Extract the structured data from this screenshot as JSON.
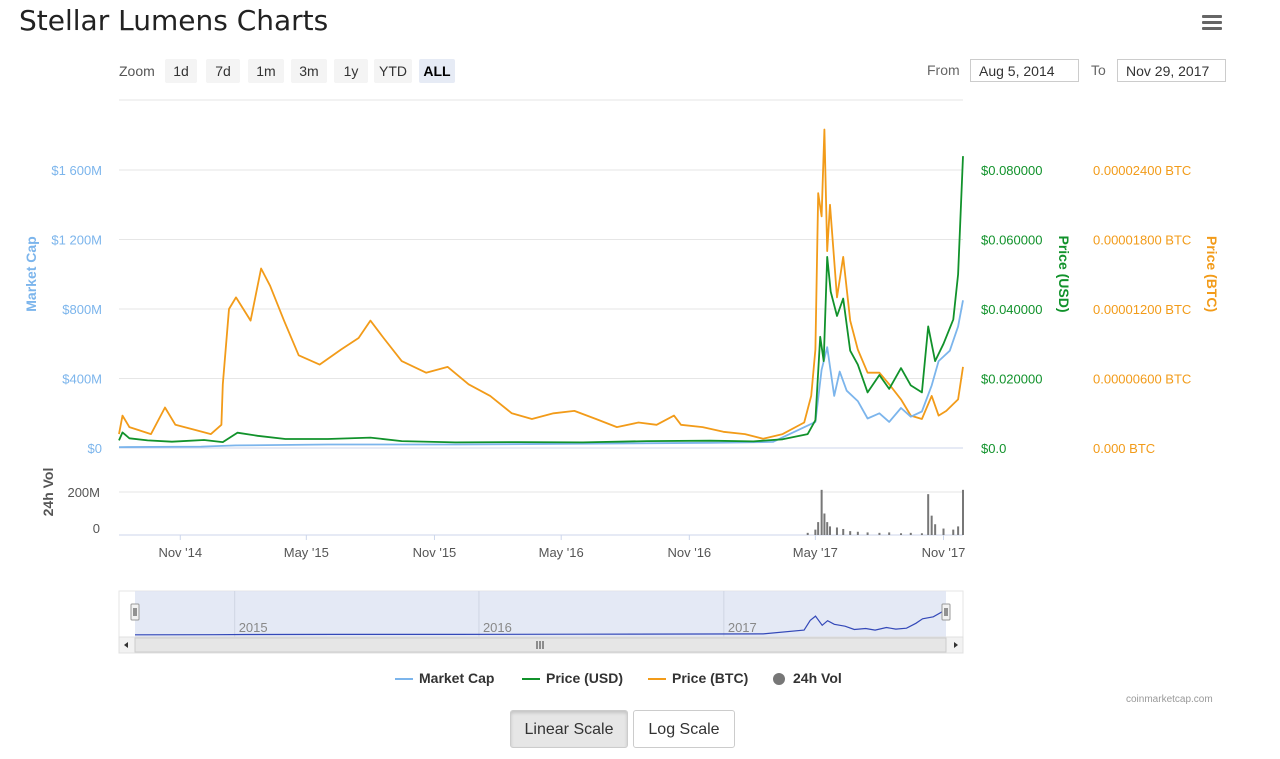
{
  "page": {
    "title": "Stellar Lumens Charts",
    "credits": "coinmarketcap.com"
  },
  "zoom": {
    "label": "Zoom",
    "buttons": [
      "1d",
      "7d",
      "1m",
      "3m",
      "1y",
      "YTD",
      "ALL"
    ],
    "active": "ALL"
  },
  "range": {
    "from_label": "From",
    "from_value": "Aug 5, 2014",
    "to_label": "To",
    "to_value": "Nov 29, 2017"
  },
  "scale_buttons": {
    "linear": "Linear Scale",
    "log": "Log Scale",
    "active": "linear"
  },
  "colors": {
    "market_cap": "#7cb5ec",
    "price_usd": "#11922b",
    "price_btc": "#f29b19",
    "volume": "#777777",
    "navigator_fill": "#dde3f2",
    "navigator_line": "#3348b8"
  },
  "chart_data": {
    "type": "line",
    "x_range": [
      "2014-08-05",
      "2017-11-29"
    ],
    "x_ticks": [
      "Nov '14",
      "May '15",
      "Nov '15",
      "May '16",
      "Nov '16",
      "May '17",
      "Nov '17"
    ],
    "axes": {
      "market_cap": {
        "label": "Market Cap",
        "ticks": [
          "$0",
          "$400M",
          "$800M",
          "$1 200M",
          "$1 600M"
        ],
        "range": [
          0,
          1600
        ]
      },
      "price_usd": {
        "label": "Price (USD)",
        "ticks": [
          "$0.0",
          "$0.020000",
          "$0.040000",
          "$0.060000",
          "$0.080000"
        ],
        "range": [
          0,
          0.08
        ]
      },
      "price_btc": {
        "label": "Price (BTC)",
        "ticks": [
          "0.000 BTC",
          "0.00000600 BTC",
          "0.00001200 BTC",
          "0.00001800 BTC",
          "0.00002400 BTC"
        ],
        "range": [
          0,
          2.4e-05
        ]
      },
      "volume": {
        "label": "24h Vol",
        "ticks": [
          "0",
          "200M"
        ],
        "range": [
          0,
          200
        ]
      }
    },
    "navigator_years": [
      "2015",
      "2016",
      "2017"
    ],
    "series": [
      {
        "name": "Market Cap",
        "axis": "market_cap",
        "points": [
          [
            "2014-08-05",
            5
          ],
          [
            "2014-12-01",
            8
          ],
          [
            "2015-01-20",
            15
          ],
          [
            "2015-06-01",
            20
          ],
          [
            "2015-12-01",
            20
          ],
          [
            "2016-06-01",
            25
          ],
          [
            "2016-12-01",
            30
          ],
          [
            "2017-03-01",
            35
          ],
          [
            "2017-05-01",
            150
          ],
          [
            "2017-05-10",
            450
          ],
          [
            "2017-05-18",
            580
          ],
          [
            "2017-05-28",
            300
          ],
          [
            "2017-06-05",
            440
          ],
          [
            "2017-06-15",
            330
          ],
          [
            "2017-07-01",
            270
          ],
          [
            "2017-07-15",
            170
          ],
          [
            "2017-08-01",
            200
          ],
          [
            "2017-08-15",
            150
          ],
          [
            "2017-09-01",
            230
          ],
          [
            "2017-09-15",
            180
          ],
          [
            "2017-10-01",
            210
          ],
          [
            "2017-10-15",
            360
          ],
          [
            "2017-10-25",
            500
          ],
          [
            "2017-11-10",
            560
          ],
          [
            "2017-11-22",
            700
          ],
          [
            "2017-11-29",
            850
          ]
        ]
      },
      {
        "name": "Price (USD)",
        "axis": "price_usd",
        "points": [
          [
            "2014-08-05",
            0.0022
          ],
          [
            "2014-08-10",
            0.0045
          ],
          [
            "2014-08-20",
            0.0028
          ],
          [
            "2014-09-15",
            0.0022
          ],
          [
            "2014-10-20",
            0.0018
          ],
          [
            "2014-12-05",
            0.0023
          ],
          [
            "2015-01-01",
            0.0017
          ],
          [
            "2015-01-22",
            0.0044
          ],
          [
            "2015-02-20",
            0.0035
          ],
          [
            "2015-04-01",
            0.0026
          ],
          [
            "2015-06-01",
            0.0026
          ],
          [
            "2015-08-01",
            0.003
          ],
          [
            "2015-09-15",
            0.002
          ],
          [
            "2015-12-01",
            0.0016
          ],
          [
            "2016-03-01",
            0.0017
          ],
          [
            "2016-06-01",
            0.0016
          ],
          [
            "2016-09-01",
            0.002
          ],
          [
            "2016-12-01",
            0.0021
          ],
          [
            "2017-02-01",
            0.0019
          ],
          [
            "2017-03-15",
            0.0025
          ],
          [
            "2017-04-20",
            0.004
          ],
          [
            "2017-05-01",
            0.008
          ],
          [
            "2017-05-08",
            0.032
          ],
          [
            "2017-05-13",
            0.025
          ],
          [
            "2017-05-18",
            0.055
          ],
          [
            "2017-05-23",
            0.045
          ],
          [
            "2017-06-01",
            0.038
          ],
          [
            "2017-06-10",
            0.043
          ],
          [
            "2017-06-20",
            0.028
          ],
          [
            "2017-07-01",
            0.024
          ],
          [
            "2017-07-15",
            0.016
          ],
          [
            "2017-08-01",
            0.021
          ],
          [
            "2017-08-15",
            0.017
          ],
          [
            "2017-09-01",
            0.023
          ],
          [
            "2017-09-15",
            0.018
          ],
          [
            "2017-10-01",
            0.016
          ],
          [
            "2017-10-10",
            0.035
          ],
          [
            "2017-10-20",
            0.025
          ],
          [
            "2017-11-01",
            0.03
          ],
          [
            "2017-11-15",
            0.037
          ],
          [
            "2017-11-22",
            0.05
          ],
          [
            "2017-11-29",
            0.084
          ]
        ]
      },
      {
        "name": "Price (BTC)",
        "axis": "price_btc",
        "points": [
          [
            "2014-08-05",
            1.2e-06
          ],
          [
            "2014-08-10",
            2.8e-06
          ],
          [
            "2014-08-20",
            1.8e-06
          ],
          [
            "2014-09-20",
            1.2e-06
          ],
          [
            "2014-10-10",
            3.5e-06
          ],
          [
            "2014-10-25",
            2e-06
          ],
          [
            "2014-11-20",
            1.6e-06
          ],
          [
            "2014-12-15",
            1.2e-06
          ],
          [
            "2014-12-30",
            2e-06
          ],
          [
            "2015-01-01",
            5.5e-06
          ],
          [
            "2015-01-10",
            1.2e-05
          ],
          [
            "2015-01-20",
            1.3e-05
          ],
          [
            "2015-02-10",
            1.1e-05
          ],
          [
            "2015-02-25",
            1.55e-05
          ],
          [
            "2015-03-10",
            1.4e-05
          ],
          [
            "2015-03-30",
            1.1e-05
          ],
          [
            "2015-04-20",
            8e-06
          ],
          [
            "2015-05-20",
            7.2e-06
          ],
          [
            "2015-06-20",
            8.5e-06
          ],
          [
            "2015-07-15",
            9.5e-06
          ],
          [
            "2015-08-01",
            1.1e-05
          ],
          [
            "2015-08-20",
            9.5e-06
          ],
          [
            "2015-09-15",
            7.5e-06
          ],
          [
            "2015-10-20",
            6.5e-06
          ],
          [
            "2015-11-20",
            7e-06
          ],
          [
            "2015-12-20",
            5.5e-06
          ],
          [
            "2016-01-20",
            4.5e-06
          ],
          [
            "2016-02-20",
            3e-06
          ],
          [
            "2016-03-20",
            2.5e-06
          ],
          [
            "2016-04-20",
            3e-06
          ],
          [
            "2016-05-20",
            3.2e-06
          ],
          [
            "2016-06-20",
            2.5e-06
          ],
          [
            "2016-07-20",
            1.8e-06
          ],
          [
            "2016-08-20",
            2.2e-06
          ],
          [
            "2016-09-15",
            2e-06
          ],
          [
            "2016-10-10",
            2.8e-06
          ],
          [
            "2016-10-20",
            2e-06
          ],
          [
            "2016-11-20",
            1.8e-06
          ],
          [
            "2016-12-20",
            1.4e-06
          ],
          [
            "2017-01-20",
            1.2e-06
          ],
          [
            "2017-02-15",
            8e-07
          ],
          [
            "2017-03-15",
            1.2e-06
          ],
          [
            "2017-04-15",
            2.2e-06
          ],
          [
            "2017-04-25",
            4.5e-06
          ],
          [
            "2017-05-01",
            8.5e-06
          ],
          [
            "2017-05-05",
            2.2e-05
          ],
          [
            "2017-05-10",
            2e-05
          ],
          [
            "2017-05-14",
            2.75e-05
          ],
          [
            "2017-05-18",
            1.7e-05
          ],
          [
            "2017-05-22",
            2.1e-05
          ],
          [
            "2017-06-01",
            1.3e-05
          ],
          [
            "2017-06-10",
            1.65e-05
          ],
          [
            "2017-06-20",
            1.1e-05
          ],
          [
            "2017-07-01",
            8.5e-06
          ],
          [
            "2017-07-15",
            6.5e-06
          ],
          [
            "2017-08-01",
            6.5e-06
          ],
          [
            "2017-08-15",
            5.5e-06
          ],
          [
            "2017-09-01",
            4.2e-06
          ],
          [
            "2017-09-15",
            2.8e-06
          ],
          [
            "2017-10-01",
            2.5e-06
          ],
          [
            "2017-10-15",
            4.5e-06
          ],
          [
            "2017-10-25",
            2.8e-06
          ],
          [
            "2017-11-05",
            3.2e-06
          ],
          [
            "2017-11-15",
            3.8e-06
          ],
          [
            "2017-11-22",
            4.2e-06
          ],
          [
            "2017-11-29",
            7e-06
          ]
        ]
      },
      {
        "name": "24h Vol",
        "axis": "volume",
        "type": "column",
        "points": [
          [
            "2017-04-20",
            10
          ],
          [
            "2017-05-01",
            25
          ],
          [
            "2017-05-05",
            60
          ],
          [
            "2017-05-10",
            230
          ],
          [
            "2017-05-14",
            100
          ],
          [
            "2017-05-18",
            60
          ],
          [
            "2017-05-22",
            40
          ],
          [
            "2017-06-01",
            35
          ],
          [
            "2017-06-10",
            28
          ],
          [
            "2017-06-20",
            18
          ],
          [
            "2017-07-01",
            15
          ],
          [
            "2017-07-15",
            12
          ],
          [
            "2017-08-01",
            10
          ],
          [
            "2017-08-15",
            12
          ],
          [
            "2017-09-01",
            8
          ],
          [
            "2017-09-15",
            10
          ],
          [
            "2017-10-01",
            8
          ],
          [
            "2017-10-10",
            190
          ],
          [
            "2017-10-15",
            90
          ],
          [
            "2017-10-20",
            50
          ],
          [
            "2017-11-01",
            30
          ],
          [
            "2017-11-15",
            25
          ],
          [
            "2017-11-22",
            40
          ],
          [
            "2017-11-29",
            290
          ]
        ]
      }
    ]
  }
}
